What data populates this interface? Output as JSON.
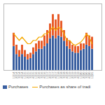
{
  "chart_data": {
    "type": "bar",
    "stacked": true,
    "categories": [
      "1Q14",
      "2Q14",
      "3Q14",
      "4Q14",
      "1Q15",
      "2Q15",
      "3Q15",
      "4Q15",
      "1Q16",
      "2Q16",
      "3Q16",
      "4Q16",
      "1Q17",
      "2Q17",
      "3Q17",
      "4Q17",
      "1Q18",
      "2Q18",
      "3Q18",
      "4Q18",
      "1Q19",
      "2Q19",
      "3Q19",
      "4Q19",
      "1Q20",
      "2Q20",
      "3Q20",
      "4Q20",
      "1Q21"
    ],
    "series": [
      {
        "name": "Purchases",
        "type": "bar",
        "color": "#3a5fa0",
        "values": [
          18,
          12,
          10,
          12,
          10,
          8,
          9,
          12,
          14,
          16,
          16,
          18,
          20,
          24,
          26,
          24,
          26,
          25,
          22,
          18,
          16,
          14,
          13,
          13,
          15,
          16,
          19,
          18,
          16
        ]
      },
      {
        "type": "bar",
        "color": "#e85c2a",
        "values": [
          10,
          7,
          5,
          7,
          5,
          4,
          4,
          5,
          6,
          6,
          6,
          8,
          10,
          11,
          16,
          14,
          16,
          12,
          8,
          6,
          6,
          5,
          5,
          5,
          5,
          4,
          9,
          8,
          9
        ]
      },
      {
        "name": "Purchases as share of tradi",
        "type": "line",
        "color": "#f5a800",
        "axis": "y2",
        "values": [
          52,
          50,
          48,
          50,
          48,
          46,
          46,
          48,
          48,
          50,
          50,
          52,
          52,
          54,
          56,
          54,
          56,
          55,
          52,
          48,
          48,
          46,
          45,
          46,
          47,
          49,
          52,
          50,
          46
        ]
      }
    ],
    "ylim": [
      0,
      50
    ],
    "y2lim": [
      30,
      70
    ],
    "grid": false,
    "tick_labels": "x",
    "legend": "bottom"
  }
}
